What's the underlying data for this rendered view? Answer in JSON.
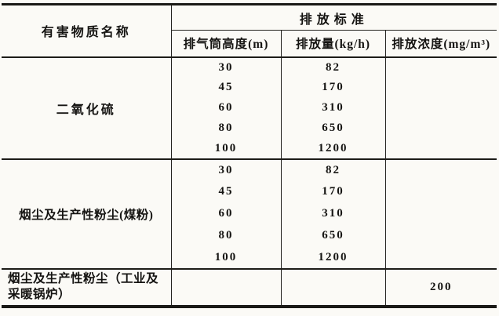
{
  "table": {
    "columns": {
      "substance": "有害物质名称",
      "group": "排放标准",
      "height": "排气筒高度(m)",
      "rate": "排放量(kg/h)",
      "concentration": "排放浓度(mg/m³)"
    },
    "sections": [
      {
        "substance": "二氧化硫",
        "concentration": "",
        "rows": [
          {
            "height": "30",
            "rate": "82"
          },
          {
            "height": "45",
            "rate": "170"
          },
          {
            "height": "60",
            "rate": "310"
          },
          {
            "height": "80",
            "rate": "650"
          },
          {
            "height": "100",
            "rate": "1200"
          }
        ]
      },
      {
        "substance": "烟尘及生产性粉尘(煤粉)",
        "concentration": "",
        "rows": [
          {
            "height": "30",
            "rate": "82"
          },
          {
            "height": "45",
            "rate": "170"
          },
          {
            "height": "60",
            "rate": "310"
          },
          {
            "height": "80",
            "rate": "650"
          },
          {
            "height": "100",
            "rate": "1200"
          }
        ]
      },
      {
        "substance": "烟尘及生产性粉尘（工业及采暖锅炉）",
        "rows": [
          {
            "height": "",
            "rate": "",
            "concentration": "200"
          }
        ]
      }
    ]
  }
}
